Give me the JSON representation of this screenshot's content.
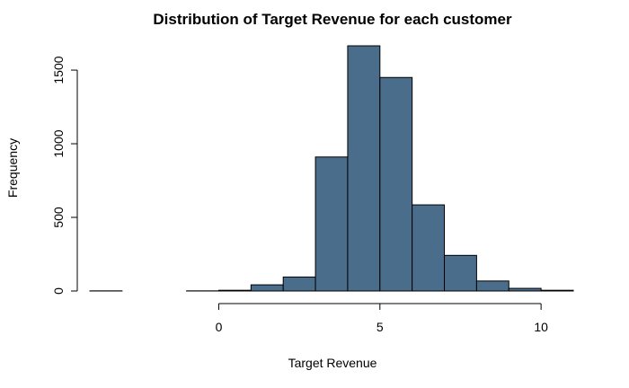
{
  "chart_data": {
    "type": "bar",
    "title": "Distribution of Target Revenue for each customer",
    "xlabel": "Target Revenue",
    "ylabel": "Frequency",
    "bar_color": "#4a6d8c",
    "xlim": [
      -4,
      11
    ],
    "ylim": [
      0,
      1700
    ],
    "x_ticks": [
      0,
      5,
      10
    ],
    "y_ticks": [
      0,
      500,
      1000,
      1500
    ],
    "bins": [
      {
        "start": -4,
        "end": -3,
        "value": 1
      },
      {
        "start": -3,
        "end": -2,
        "value": 0
      },
      {
        "start": -2,
        "end": -1,
        "value": 0
      },
      {
        "start": -1,
        "end": 0,
        "value": 1
      },
      {
        "start": 0,
        "end": 1,
        "value": 5
      },
      {
        "start": 1,
        "end": 2,
        "value": 42
      },
      {
        "start": 2,
        "end": 3,
        "value": 95
      },
      {
        "start": 3,
        "end": 4,
        "value": 910
      },
      {
        "start": 4,
        "end": 5,
        "value": 1665
      },
      {
        "start": 5,
        "end": 6,
        "value": 1450
      },
      {
        "start": 6,
        "end": 7,
        "value": 585
      },
      {
        "start": 7,
        "end": 8,
        "value": 242
      },
      {
        "start": 8,
        "end": 9,
        "value": 68
      },
      {
        "start": 9,
        "end": 10,
        "value": 18
      },
      {
        "start": 10,
        "end": 11,
        "value": 5
      }
    ]
  }
}
